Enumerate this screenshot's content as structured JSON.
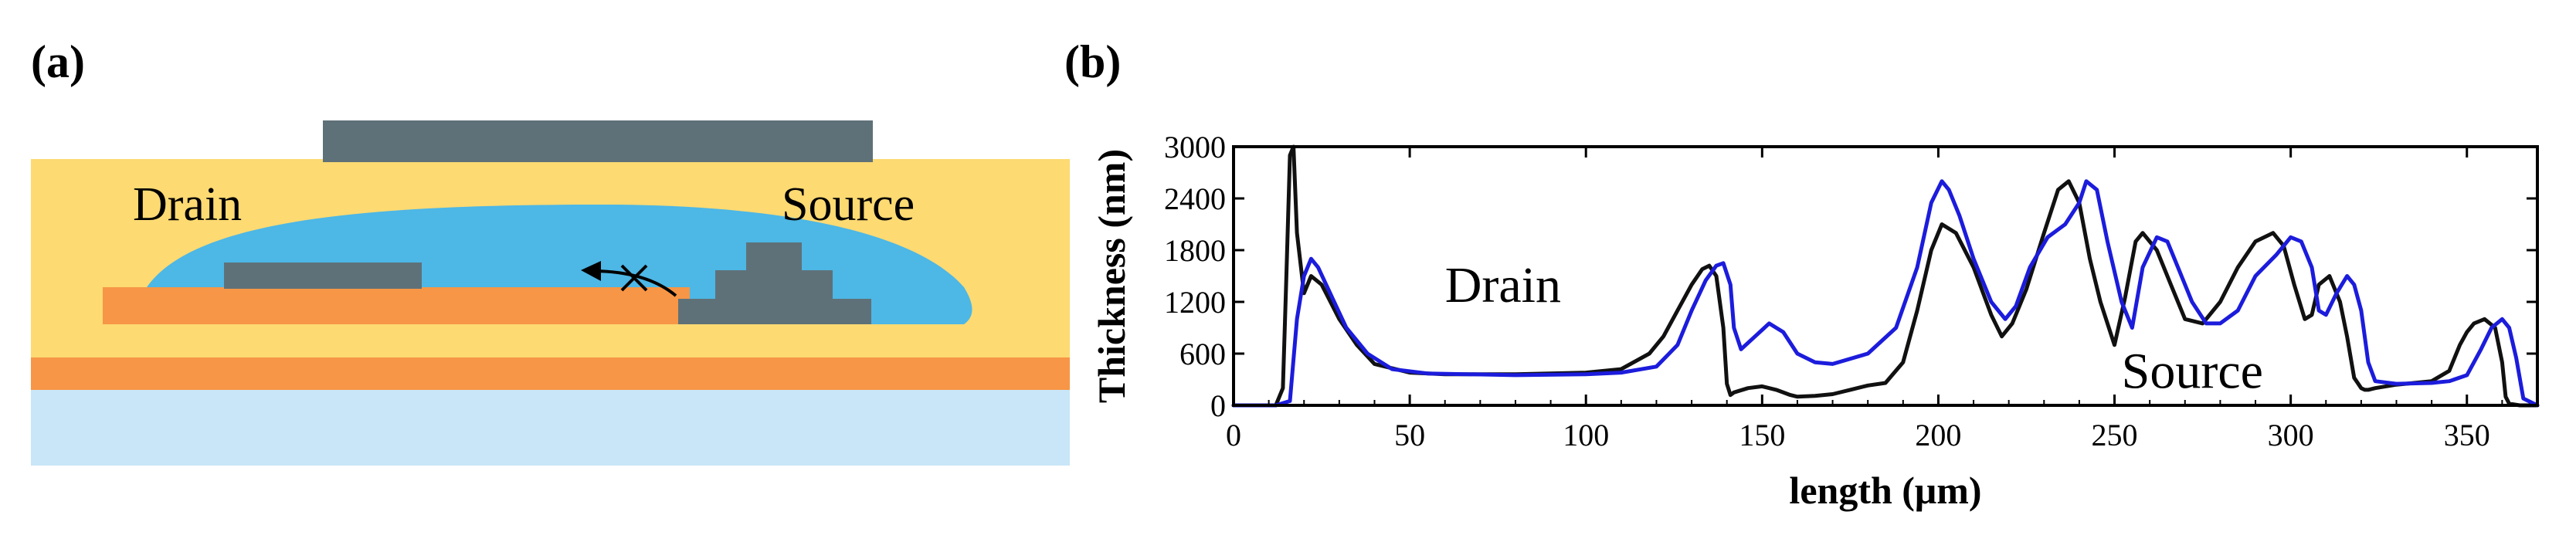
{
  "panel_a": {
    "label": "(a)",
    "drain_label": "Drain",
    "source_label": "Source",
    "colors": {
      "encapsulant": "#FDDA72",
      "droplet": "#4DB7E6",
      "electrode": "#F79646",
      "dark_layer": "#5F7178",
      "substrate": "#C8E6F7"
    }
  },
  "panel_b": {
    "label": "(b)",
    "annotations": {
      "drain": "Drain",
      "source": "Source"
    }
  },
  "chart_data": {
    "type": "line",
    "title": "",
    "xlabel": "length (μm)",
    "ylabel": "Thickness (nm)",
    "xlim": [
      0,
      370
    ],
    "ylim": [
      0,
      3000
    ],
    "xticks": [
      0,
      50,
      100,
      150,
      200,
      250,
      300,
      350
    ],
    "yticks": [
      0,
      600,
      1200,
      1800,
      2400,
      3000
    ],
    "series": [
      {
        "name": "black profile",
        "color": "#111111",
        "x": [
          0,
          12,
          14,
          15,
          16,
          17,
          18,
          20,
          22,
          25,
          30,
          35,
          40,
          50,
          60,
          80,
          100,
          110,
          118,
          122,
          126,
          130,
          133,
          135,
          137,
          139,
          140,
          141,
          142,
          146,
          150,
          154,
          158,
          160,
          165,
          170,
          175,
          180,
          185,
          190,
          194,
          198,
          201,
          205,
          210,
          215,
          218,
          221,
          225,
          230,
          234,
          237,
          240,
          243,
          246,
          250,
          253,
          256,
          258,
          262,
          266,
          270,
          275,
          280,
          285,
          290,
          295,
          298,
          301,
          304,
          306,
          308,
          311,
          314,
          316,
          318,
          320,
          321,
          322,
          324,
          330,
          340,
          345,
          348,
          350,
          352,
          355,
          358,
          360,
          361,
          362,
          365,
          370
        ],
        "y": [
          0,
          0,
          200,
          1500,
          2900,
          3000,
          2000,
          1300,
          1500,
          1400,
          1000,
          700,
          480,
          380,
          360,
          360,
          380,
          420,
          600,
          800,
          1100,
          1400,
          1580,
          1620,
          1500,
          900,
          250,
          120,
          150,
          200,
          220,
          180,
          120,
          100,
          110,
          130,
          180,
          230,
          260,
          500,
          1100,
          1800,
          2100,
          2000,
          1600,
          1050,
          800,
          950,
          1350,
          2000,
          2500,
          2600,
          2350,
          1700,
          1200,
          700,
          1250,
          1900,
          2000,
          1800,
          1400,
          1000,
          950,
          1200,
          1600,
          1900,
          2000,
          1850,
          1400,
          1000,
          1050,
          1400,
          1500,
          1200,
          800,
          320,
          200,
          180,
          180,
          200,
          240,
          280,
          400,
          700,
          850,
          950,
          1000,
          900,
          500,
          100,
          20,
          0,
          0
        ]
      },
      {
        "name": "blue profile",
        "color": "#1C1CDC",
        "x": [
          0,
          12,
          16,
          18,
          20,
          22,
          24,
          28,
          32,
          38,
          45,
          55,
          80,
          100,
          110,
          120,
          126,
          130,
          134,
          137,
          139,
          141,
          142,
          144,
          148,
          152,
          156,
          160,
          165,
          170,
          180,
          188,
          194,
          198,
          201,
          203,
          206,
          210,
          215,
          219,
          222,
          226,
          231,
          236,
          240,
          242,
          245,
          248,
          252,
          255,
          258,
          262,
          265,
          268,
          272,
          276,
          280,
          285,
          290,
          296,
          300,
          303,
          306,
          308,
          310,
          313,
          316,
          318,
          320,
          322,
          324,
          330,
          340,
          345,
          350,
          354,
          357,
          360,
          362,
          364,
          366,
          370
        ],
        "y": [
          0,
          0,
          50,
          1000,
          1500,
          1700,
          1600,
          1250,
          900,
          600,
          420,
          370,
          350,
          360,
          380,
          450,
          700,
          1100,
          1450,
          1620,
          1650,
          1400,
          900,
          650,
          800,
          950,
          850,
          600,
          500,
          480,
          600,
          900,
          1600,
          2350,
          2600,
          2500,
          2200,
          1700,
          1200,
          1000,
          1150,
          1600,
          1950,
          2100,
          2350,
          2600,
          2500,
          1900,
          1200,
          900,
          1600,
          1950,
          1900,
          1600,
          1200,
          950,
          950,
          1100,
          1500,
          1750,
          1950,
          1900,
          1600,
          1100,
          1050,
          1300,
          1500,
          1400,
          1100,
          500,
          280,
          250,
          260,
          280,
          350,
          650,
          900,
          1000,
          900,
          550,
          80,
          0
        ]
      }
    ]
  }
}
